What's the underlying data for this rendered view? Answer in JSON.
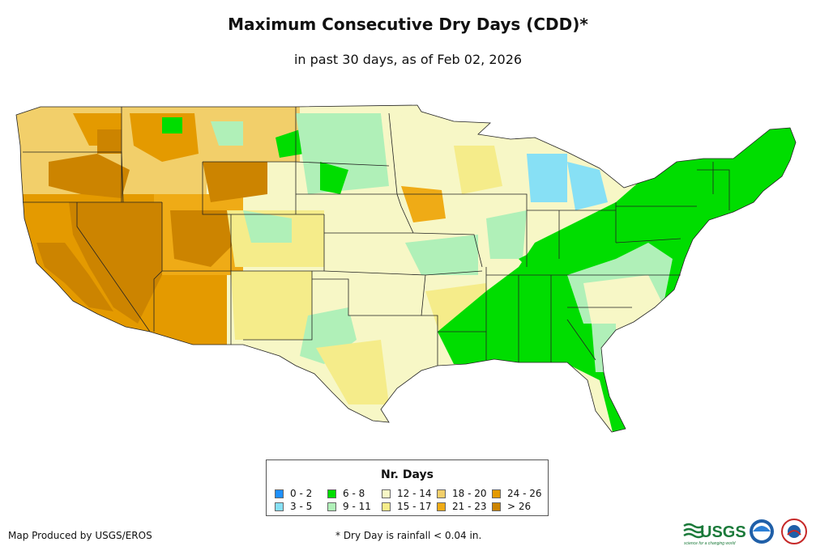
{
  "title": "Maximum Consecutive Dry Days (CDD)*",
  "subtitle": "in past 30 days, as of Feb 02, 2026",
  "legend": {
    "title": "Nr. Days",
    "items": [
      {
        "label": "0 - 2",
        "color": "#1e90ff"
      },
      {
        "label": "3 - 5",
        "color": "#87e0f5"
      },
      {
        "label": "6 - 8",
        "color": "#00dd00"
      },
      {
        "label": "9 - 11",
        "color": "#b0f0b8"
      },
      {
        "label": "12 - 14",
        "color": "#f7f7c6"
      },
      {
        "label": "15 - 17",
        "color": "#f5ec8a"
      },
      {
        "label": "18 - 20",
        "color": "#f2cf6a"
      },
      {
        "label": "21 - 23",
        "color": "#efab16"
      },
      {
        "label": "24 - 26",
        "color": "#e49a00"
      },
      {
        "label": "> 26",
        "color": "#cc8400"
      }
    ]
  },
  "credit": "Map Produced by USGS/EROS",
  "footnote": "* Dry Day is rainfall < 0.04 in.",
  "logos": {
    "usgs": "USGS",
    "usgs_tagline": "science for a changing world"
  }
}
